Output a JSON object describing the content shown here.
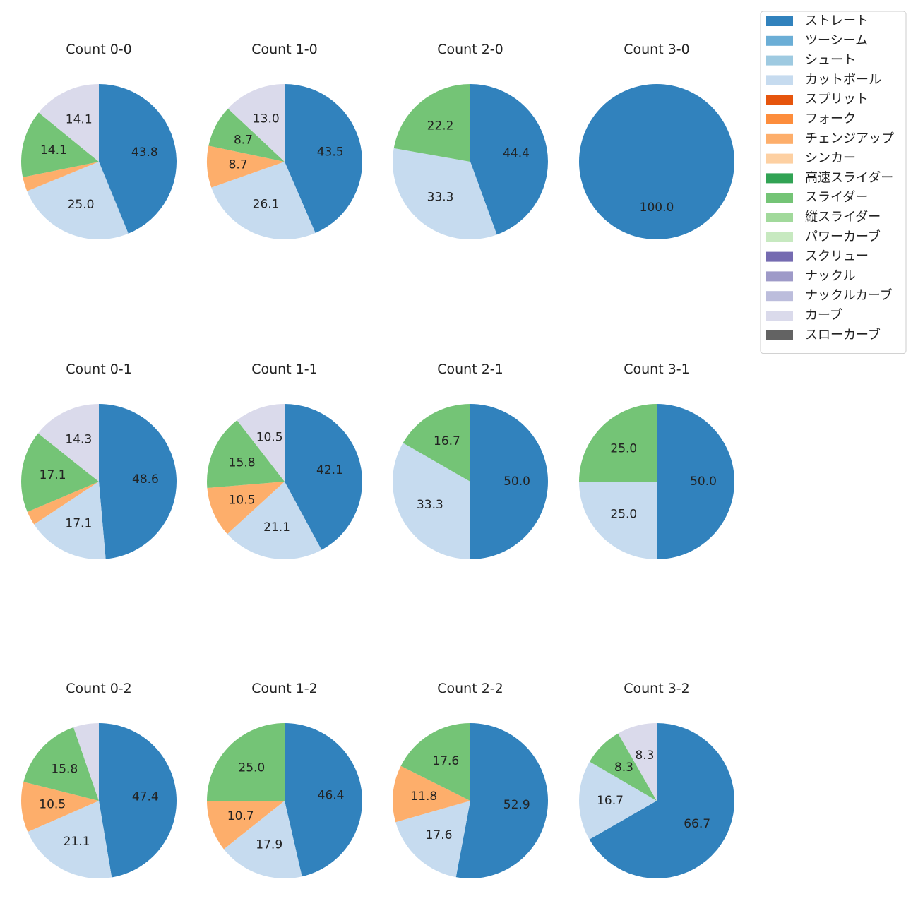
{
  "chart_data": {
    "type": "pie",
    "legend": {
      "placement": "top-right",
      "entries": [
        {
          "name": "ストレート",
          "color": "#3182bd"
        },
        {
          "name": "ツーシーム",
          "color": "#6baed6"
        },
        {
          "name": "シュート",
          "color": "#9ecae1"
        },
        {
          "name": "カットボール",
          "color": "#c6dbef"
        },
        {
          "name": "スプリット",
          "color": "#e6550d"
        },
        {
          "name": "フォーク",
          "color": "#fd8d3c"
        },
        {
          "name": "チェンジアップ",
          "color": "#fdae6b"
        },
        {
          "name": "シンカー",
          "color": "#fdd0a2"
        },
        {
          "name": "高速スライダー",
          "color": "#31a354"
        },
        {
          "name": "スライダー",
          "color": "#74c476"
        },
        {
          "name": "縦スライダー",
          "color": "#a1d99b"
        },
        {
          "name": "パワーカーブ",
          "color": "#c7e9c0"
        },
        {
          "name": "スクリュー",
          "color": "#756bb1"
        },
        {
          "name": "ナックル",
          "color": "#9e9ac8"
        },
        {
          "name": "ナックルカーブ",
          "color": "#bcbddc"
        },
        {
          "name": "カーブ",
          "color": "#dadaeb"
        },
        {
          "name": "スローカーブ",
          "color": "#636363"
        }
      ]
    },
    "pies": [
      {
        "title": "Count 0-0",
        "slices": [
          {
            "pitch": "ストレート",
            "value": 43.8,
            "label": "43.8"
          },
          {
            "pitch": "カットボール",
            "value": 25.0,
            "label": "25.0"
          },
          {
            "pitch": "チェンジアップ",
            "value": 3.0,
            "label": ""
          },
          {
            "pitch": "スライダー",
            "value": 14.1,
            "label": "14.1"
          },
          {
            "pitch": "カーブ",
            "value": 14.1,
            "label": "14.1"
          }
        ]
      },
      {
        "title": "Count 1-0",
        "slices": [
          {
            "pitch": "ストレート",
            "value": 43.5,
            "label": "43.5"
          },
          {
            "pitch": "カットボール",
            "value": 26.1,
            "label": "26.1"
          },
          {
            "pitch": "チェンジアップ",
            "value": 8.7,
            "label": "8.7"
          },
          {
            "pitch": "スライダー",
            "value": 8.7,
            "label": "8.7"
          },
          {
            "pitch": "カーブ",
            "value": 13.0,
            "label": "13.0"
          }
        ]
      },
      {
        "title": "Count 2-0",
        "slices": [
          {
            "pitch": "ストレート",
            "value": 44.4,
            "label": "44.4"
          },
          {
            "pitch": "カットボール",
            "value": 33.3,
            "label": "33.3"
          },
          {
            "pitch": "スライダー",
            "value": 22.2,
            "label": "22.2"
          }
        ]
      },
      {
        "title": "Count 3-0",
        "slices": [
          {
            "pitch": "ストレート",
            "value": 100.0,
            "label": "100.0"
          }
        ]
      },
      {
        "title": "Count 0-1",
        "slices": [
          {
            "pitch": "ストレート",
            "value": 48.6,
            "label": "48.6"
          },
          {
            "pitch": "カットボール",
            "value": 17.1,
            "label": "17.1"
          },
          {
            "pitch": "チェンジアップ",
            "value": 2.9,
            "label": ""
          },
          {
            "pitch": "スライダー",
            "value": 17.1,
            "label": "17.1"
          },
          {
            "pitch": "カーブ",
            "value": 14.3,
            "label": "14.3"
          }
        ]
      },
      {
        "title": "Count 1-1",
        "slices": [
          {
            "pitch": "ストレート",
            "value": 42.1,
            "label": "42.1"
          },
          {
            "pitch": "カットボール",
            "value": 21.1,
            "label": "21.1"
          },
          {
            "pitch": "チェンジアップ",
            "value": 10.5,
            "label": "10.5"
          },
          {
            "pitch": "スライダー",
            "value": 15.8,
            "label": "15.8"
          },
          {
            "pitch": "カーブ",
            "value": 10.5,
            "label": "10.5"
          }
        ]
      },
      {
        "title": "Count 2-1",
        "slices": [
          {
            "pitch": "ストレート",
            "value": 50.0,
            "label": "50.0"
          },
          {
            "pitch": "カットボール",
            "value": 33.3,
            "label": "33.3"
          },
          {
            "pitch": "スライダー",
            "value": 16.7,
            "label": "16.7"
          }
        ]
      },
      {
        "title": "Count 3-1",
        "slices": [
          {
            "pitch": "ストレート",
            "value": 50.0,
            "label": "50.0"
          },
          {
            "pitch": "カットボール",
            "value": 25.0,
            "label": "25.0"
          },
          {
            "pitch": "スライダー",
            "value": 25.0,
            "label": "25.0"
          }
        ]
      },
      {
        "title": "Count 0-2",
        "slices": [
          {
            "pitch": "ストレート",
            "value": 47.4,
            "label": "47.4"
          },
          {
            "pitch": "カットボール",
            "value": 21.1,
            "label": "21.1"
          },
          {
            "pitch": "チェンジアップ",
            "value": 10.5,
            "label": "10.5"
          },
          {
            "pitch": "スライダー",
            "value": 15.8,
            "label": "15.8"
          },
          {
            "pitch": "カーブ",
            "value": 5.3,
            "label": ""
          }
        ]
      },
      {
        "title": "Count 1-2",
        "slices": [
          {
            "pitch": "ストレート",
            "value": 46.4,
            "label": "46.4"
          },
          {
            "pitch": "カットボール",
            "value": 17.9,
            "label": "17.9"
          },
          {
            "pitch": "チェンジアップ",
            "value": 10.7,
            "label": "10.7"
          },
          {
            "pitch": "スライダー",
            "value": 25.0,
            "label": "25.0"
          }
        ]
      },
      {
        "title": "Count 2-2",
        "slices": [
          {
            "pitch": "ストレート",
            "value": 52.9,
            "label": "52.9"
          },
          {
            "pitch": "カットボール",
            "value": 17.6,
            "label": "17.6"
          },
          {
            "pitch": "チェンジアップ",
            "value": 11.8,
            "label": "11.8"
          },
          {
            "pitch": "スライダー",
            "value": 17.6,
            "label": "17.6"
          }
        ]
      },
      {
        "title": "Count 3-2",
        "slices": [
          {
            "pitch": "ストレート",
            "value": 66.7,
            "label": "66.7"
          },
          {
            "pitch": "カットボール",
            "value": 16.7,
            "label": "16.7"
          },
          {
            "pitch": "スライダー",
            "value": 8.3,
            "label": "8.3"
          },
          {
            "pitch": "カーブ",
            "value": 8.3,
            "label": "8.3"
          }
        ]
      }
    ]
  }
}
